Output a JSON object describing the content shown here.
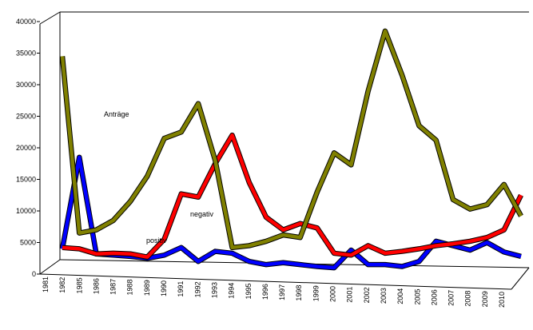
{
  "chart_data": {
    "type": "line",
    "categories": [
      "1981",
      "1982",
      "1985",
      "1986",
      "1987",
      "1988",
      "1989",
      "1990",
      "1991",
      "1992",
      "1993",
      "1994",
      "1995",
      "1996",
      "1997",
      "1998",
      "1999",
      "2000",
      "2001",
      "2002",
      "2003",
      "2004",
      "2005",
      "2006",
      "2007",
      "2008",
      "2009",
      "2010"
    ],
    "series": [
      {
        "name": "Anträge",
        "color": "#808000",
        "values": [
          34500,
          6500,
          7000,
          8500,
          11500,
          15500,
          21500,
          22500,
          27000,
          18000,
          4200,
          4500,
          5200,
          6200,
          5800,
          13000,
          19200,
          17300,
          29000,
          38500,
          31500,
          23500,
          21200,
          11800,
          10300,
          11000,
          14200,
          9200
        ]
      },
      {
        "name": "negativ",
        "color": "#ff0000",
        "values": [
          4200,
          4000,
          3200,
          3300,
          3200,
          2700,
          5500,
          12700,
          12200,
          17500,
          22000,
          14500,
          9000,
          7000,
          8000,
          7300,
          3300,
          3000,
          4500,
          3300,
          3600,
          4000,
          4500,
          4800,
          5200,
          5800,
          7000,
          12500
        ]
      },
      {
        "name": "positiv",
        "color": "#0000ff",
        "values": [
          4000,
          18500,
          3200,
          3000,
          2800,
          2500,
          3000,
          4200,
          2000,
          3600,
          3300,
          2000,
          1500,
          1800,
          1500,
          1200,
          1000,
          3800,
          1500,
          1500,
          1200,
          2000,
          5200,
          4500,
          3800,
          5000,
          3500,
          2800
        ]
      }
    ],
    "ylim": [
      0,
      40000
    ],
    "yticks": [
      0,
      5000,
      10000,
      15000,
      20000,
      25000,
      30000,
      35000,
      40000
    ]
  }
}
